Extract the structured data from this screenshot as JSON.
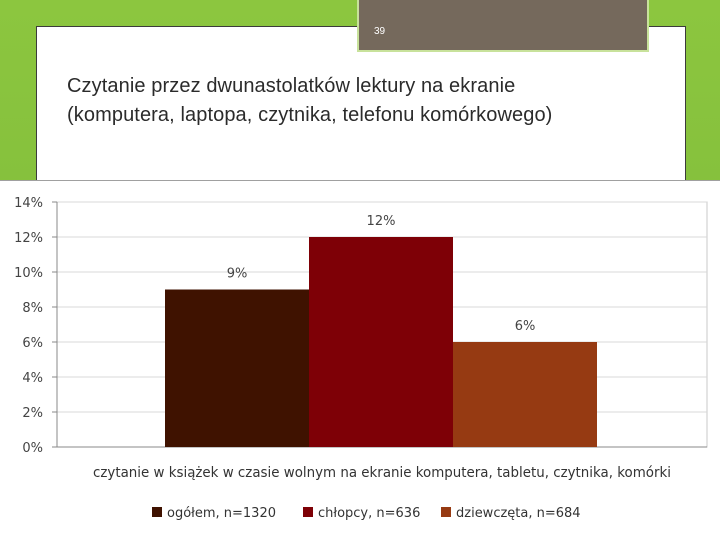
{
  "slide": {
    "page_number": "39",
    "title_line1": "Czytanie przez dwunastolatków lektury na ekranie",
    "title_line2": "(komputera, laptopa, czytnika, telefonu komórkowego)"
  },
  "chart_data": {
    "type": "bar",
    "title": "",
    "xlabel": "czytanie w książek w czasie wolnym na ekranie komputera, tabletu, czytnika, komórki",
    "ylabel": "",
    "ylim": [
      0,
      14
    ],
    "ytick_step": 2,
    "y_format": "percent",
    "grid": true,
    "legend_position": "bottom",
    "categories": [
      "czytanie w książek w czasie wolnym na ekranie komputera, tabletu, czytnika, komórki"
    ],
    "series": [
      {
        "name": "ogółem, n=1320",
        "values": [
          9
        ],
        "label": "9%",
        "color": "#3f1200"
      },
      {
        "name": "chłopcy, n=636",
        "values": [
          12
        ],
        "label": "12%",
        "color": "#7e0006"
      },
      {
        "name": "dziewczęta, n=684",
        "values": [
          6
        ],
        "label": "6%",
        "color": "#963a12"
      }
    ],
    "ytick_labels": [
      "0%",
      "2%",
      "4%",
      "6%",
      "8%",
      "10%",
      "12%",
      "14%"
    ]
  }
}
